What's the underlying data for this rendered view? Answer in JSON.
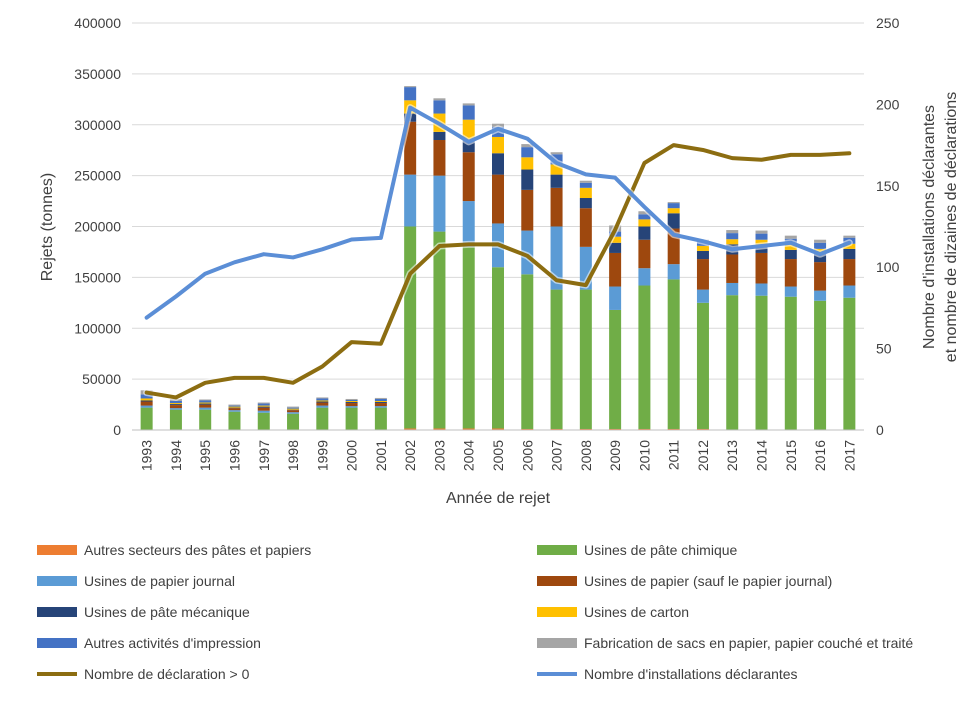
{
  "chart_data": {
    "type": "bar",
    "stacked": true,
    "categories": [
      "1993",
      "1994",
      "1995",
      "1996",
      "1997",
      "1998",
      "1999",
      "2000",
      "2001",
      "2002",
      "2003",
      "2004",
      "2005",
      "2006",
      "2007",
      "2008",
      "2009",
      "2010",
      "2011",
      "2012",
      "2013",
      "2014",
      "2015",
      "2016",
      "2017"
    ],
    "xlabel": "Année de rejet",
    "ylabel": "Rejets (tonnes)",
    "y2label_line1": "Nombre d'installations déclarantes",
    "y2label_line2": "et nombre de dizaines de déclarations",
    "ylim": [
      0,
      400000
    ],
    "y2lim": [
      0,
      250
    ],
    "yticks": [
      "0",
      "50000",
      "100000",
      "150000",
      "200000",
      "250000",
      "300000",
      "350000",
      "400000"
    ],
    "y2ticks": [
      "0",
      "50",
      "100",
      "150",
      "200",
      "250"
    ],
    "grid": true,
    "legend_position": "bottom",
    "series": [
      {
        "name": "Autres secteurs des pâtes et papiers",
        "color": "#ED7D31",
        "values": [
          0,
          0,
          0,
          0,
          0,
          0,
          0,
          0,
          0,
          1500,
          1500,
          1500,
          1500,
          1000,
          1000,
          1000,
          1000,
          1000,
          1000,
          1000,
          500,
          500,
          500,
          500,
          500
        ]
      },
      {
        "name": "Usines de pâte chimique",
        "color": "#70AD47",
        "values": [
          22000,
          20000,
          20000,
          18000,
          17000,
          16000,
          22000,
          22000,
          22000,
          198500,
          193500,
          178500,
          158500,
          152000,
          137000,
          137000,
          117000,
          141000,
          147000,
          124000,
          132000,
          131500,
          130500,
          126500,
          129500
        ]
      },
      {
        "name": "Usines de papier journal",
        "color": "#5B9BD5",
        "values": [
          2000,
          1500,
          2000,
          1500,
          2000,
          1500,
          2000,
          1500,
          1500,
          51000,
          55000,
          45000,
          43000,
          43000,
          62000,
          42000,
          23000,
          17000,
          15000,
          13000,
          12000,
          12000,
          10000,
          10000,
          12000
        ]
      },
      {
        "name": "Usines de papier (sauf le papier journal)",
        "color": "#9E480E",
        "values": [
          4000,
          3000,
          3000,
          2000,
          3000,
          2000,
          3000,
          3000,
          3000,
          52000,
          35000,
          48000,
          48000,
          40000,
          38000,
          38000,
          33000,
          28000,
          35000,
          30000,
          28000,
          30000,
          27000,
          28000,
          26000
        ]
      },
      {
        "name": "Usines de pâte mécanique",
        "color": "#264478",
        "values": [
          1000,
          1000,
          1000,
          500,
          1000,
          500,
          1000,
          1000,
          1000,
          8000,
          8000,
          12000,
          21000,
          20000,
          13000,
          10000,
          10000,
          13000,
          15000,
          8000,
          10000,
          8000,
          9000,
          9000,
          10000
        ]
      },
      {
        "name": "Usines de carton",
        "color": "#FFC000",
        "values": [
          2000,
          1000,
          1000,
          1000,
          1000,
          1000,
          1000,
          1000,
          1000,
          13000,
          18000,
          20000,
          16000,
          12000,
          10000,
          10000,
          6000,
          7000,
          5000,
          5000,
          5000,
          5000,
          5000,
          4000,
          5000
        ]
      },
      {
        "name": "Autres activités d'impression",
        "color": "#4472C4",
        "values": [
          4000,
          2000,
          2000,
          1000,
          2000,
          1000,
          2000,
          1000,
          2000,
          13000,
          13000,
          14000,
          10000,
          10000,
          10000,
          5000,
          5000,
          5000,
          5000,
          4000,
          6000,
          6000,
          6000,
          6000,
          6000
        ]
      },
      {
        "name": "Fabrication de sacs en papier, papier couché et traité",
        "color": "#A5A5A5",
        "values": [
          4000,
          2000,
          1000,
          1000,
          1000,
          1000,
          1000,
          1000,
          1000,
          1000,
          2000,
          2000,
          3000,
          3000,
          2000,
          2000,
          6000,
          3000,
          1000,
          2000,
          3000,
          3000,
          3000,
          3000,
          2000
        ]
      }
    ],
    "lines": [
      {
        "name": "Nombre de déclaration > 0",
        "color": "#8C6D11",
        "axis": "secondary",
        "values": [
          23,
          20,
          29,
          32,
          32,
          29,
          39,
          54,
          53,
          96,
          113,
          114,
          114,
          107,
          92,
          89,
          123,
          164,
          175,
          172,
          167,
          166,
          169,
          169,
          170
        ]
      },
      {
        "name": "Nombre d'installations déclarantes",
        "color": "#5B8ED6",
        "axis": "secondary",
        "values": [
          69,
          82,
          96,
          103,
          108,
          106,
          111,
          117,
          118,
          198,
          188,
          177,
          185,
          179,
          164,
          157,
          155,
          137,
          120,
          116,
          111,
          113,
          115,
          108,
          115
        ]
      }
    ]
  }
}
